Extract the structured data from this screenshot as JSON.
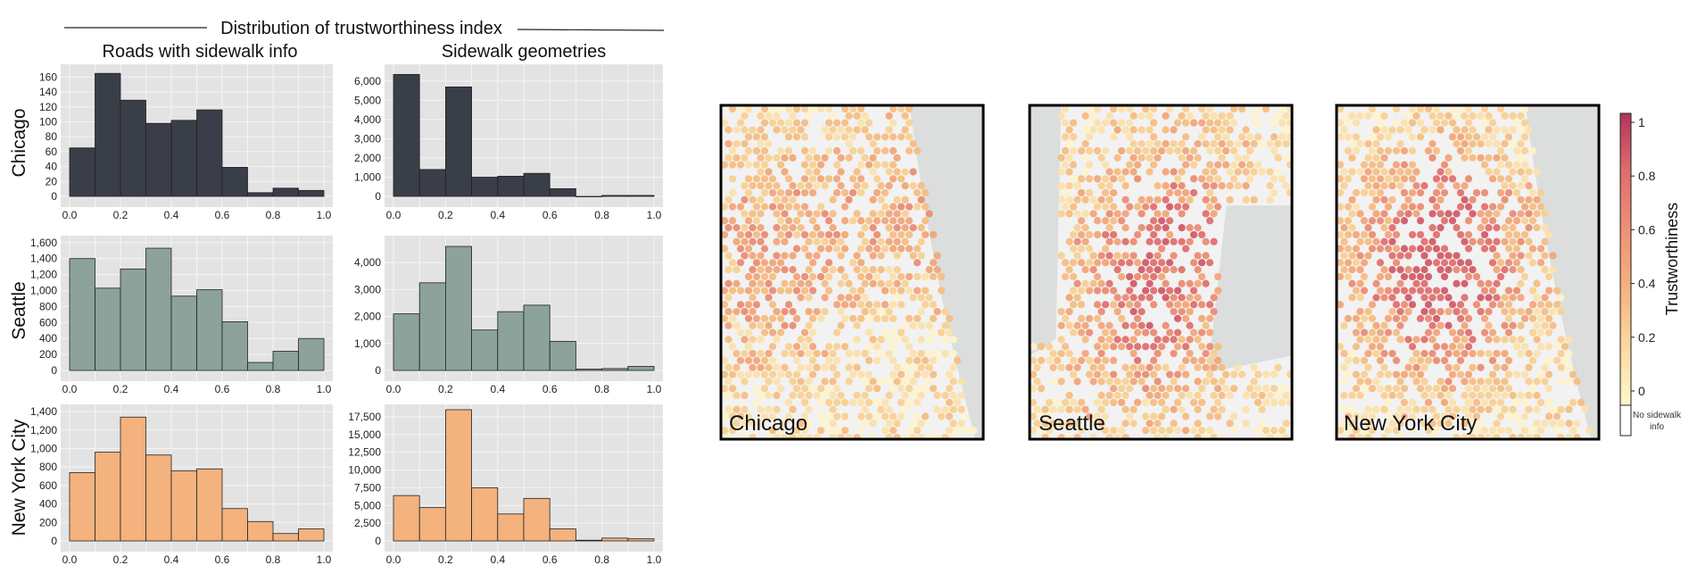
{
  "figure": {
    "title": "Distribution of trustworthiness index",
    "column_titles": [
      "Roads with sidewalk info",
      "Sidewalk geometries"
    ],
    "row_labels": [
      "Chicago",
      "Seattle",
      "New York City"
    ],
    "colors": {
      "Chicago": "#3a3e48",
      "Seattle": "#8ca29a",
      "New York City": "#f3b27e",
      "panel_bg": "#e3e3e3",
      "grid": "#f4f4f4"
    }
  },
  "chart_data": [
    {
      "type": "bar",
      "city": "Chicago",
      "column": "Roads with sidewalk info",
      "bin_edges": [
        0.0,
        0.1,
        0.2,
        0.3,
        0.4,
        0.5,
        0.6,
        0.7,
        0.8,
        0.9,
        1.0
      ],
      "values": [
        65,
        165,
        129,
        98,
        102,
        116,
        39,
        5,
        11,
        8
      ],
      "xticks": [
        "0.0",
        "0.2",
        "0.4",
        "0.6",
        "0.8",
        "1.0"
      ],
      "ylim": [
        0,
        170
      ],
      "yticks": [
        0,
        20,
        40,
        60,
        80,
        100,
        120,
        140,
        160
      ],
      "ytick_labels": [
        "0",
        "20",
        "40",
        "60",
        "80",
        "100",
        "120",
        "140",
        "160"
      ]
    },
    {
      "type": "bar",
      "city": "Chicago",
      "column": "Sidewalk geometries",
      "bin_edges": [
        0.0,
        0.1,
        0.2,
        0.3,
        0.4,
        0.5,
        0.6,
        0.7,
        0.8,
        0.9,
        1.0
      ],
      "values": [
        6350,
        1400,
        5700,
        1000,
        1050,
        1200,
        400,
        0,
        50,
        50
      ],
      "xticks": [
        "0.0",
        "0.2",
        "0.4",
        "0.6",
        "0.8",
        "1.0"
      ],
      "ylim": [
        0,
        6600
      ],
      "yticks": [
        0,
        1000,
        2000,
        3000,
        4000,
        5000,
        6000
      ],
      "ytick_labels": [
        "0",
        "1,000",
        "2,000",
        "3,000",
        "4,000",
        "5,000",
        "6,000"
      ]
    },
    {
      "type": "bar",
      "city": "Seattle",
      "column": "Roads with sidewalk info",
      "bin_edges": [
        0.0,
        0.1,
        0.2,
        0.3,
        0.4,
        0.5,
        0.6,
        0.7,
        0.8,
        0.9,
        1.0
      ],
      "values": [
        1400,
        1030,
        1270,
        1530,
        930,
        1010,
        610,
        100,
        240,
        400
      ],
      "xticks": [
        "0.0",
        "0.2",
        "0.4",
        "0.6",
        "0.8",
        "1.0"
      ],
      "ylim": [
        0,
        1620
      ],
      "yticks": [
        0,
        200,
        400,
        600,
        800,
        1000,
        1200,
        1400,
        1600
      ],
      "ytick_labels": [
        "0",
        "200",
        "400",
        "600",
        "800",
        "1,000",
        "1,200",
        "1,400",
        "1,600"
      ]
    },
    {
      "type": "bar",
      "city": "Seattle",
      "column": "Sidewalk geometries",
      "bin_edges": [
        0.0,
        0.1,
        0.2,
        0.3,
        0.4,
        0.5,
        0.6,
        0.7,
        0.8,
        0.9,
        1.0
      ],
      "values": [
        2100,
        3250,
        4600,
        1500,
        2180,
        2420,
        1080,
        50,
        70,
        150
      ],
      "xticks": [
        "0.0",
        "0.2",
        "0.4",
        "0.6",
        "0.8",
        "1.0"
      ],
      "ylim": [
        0,
        4800
      ],
      "yticks": [
        0,
        1000,
        2000,
        3000,
        4000
      ],
      "ytick_labels": [
        "0",
        "1,000",
        "2,000",
        "3,000",
        "4,000"
      ]
    },
    {
      "type": "bar",
      "city": "New York City",
      "column": "Roads with sidewalk info",
      "bin_edges": [
        0.0,
        0.1,
        0.2,
        0.3,
        0.4,
        0.5,
        0.6,
        0.7,
        0.8,
        0.9,
        1.0
      ],
      "values": [
        740,
        960,
        1340,
        930,
        760,
        780,
        350,
        210,
        80,
        130
      ],
      "xticks": [
        "0.0",
        "0.2",
        "0.4",
        "0.6",
        "0.8",
        "1.0"
      ],
      "ylim": [
        0,
        1420
      ],
      "yticks": [
        0,
        200,
        400,
        600,
        800,
        1000,
        1200,
        1400
      ],
      "ytick_labels": [
        "0",
        "200",
        "400",
        "600",
        "800",
        "1,000",
        "1,200",
        "1,400"
      ]
    },
    {
      "type": "bar",
      "city": "New York City",
      "column": "Sidewalk geometries",
      "bin_edges": [
        0.0,
        0.1,
        0.2,
        0.3,
        0.4,
        0.5,
        0.6,
        0.7,
        0.8,
        0.9,
        1.0
      ],
      "values": [
        6400,
        4700,
        18500,
        7500,
        3800,
        6000,
        1700,
        100,
        400,
        300
      ],
      "xticks": [
        "0.0",
        "0.2",
        "0.4",
        "0.6",
        "0.8",
        "1.0"
      ],
      "ylim": [
        0,
        18500
      ],
      "yticks": [
        0,
        2500,
        5000,
        7500,
        10000,
        12500,
        15000,
        17500
      ],
      "ytick_labels": [
        "0",
        "2,500",
        "5,000",
        "7,500",
        "10,000",
        "12,500",
        "15,000",
        "17,500"
      ]
    }
  ],
  "maps": {
    "labels": [
      "Chicago",
      "Seattle",
      "New York City"
    ]
  },
  "colorbar": {
    "label": "Trustworthiness",
    "ticks": [
      "0",
      "0.2",
      "0.4",
      "0.6",
      "0.8",
      "1"
    ],
    "no_data_label_lines": [
      "No sidewalk",
      "info"
    ],
    "colors": [
      "#fff6c6",
      "#fbd79a",
      "#f6b07d",
      "#ed8f72",
      "#de6c6c",
      "#b2385c"
    ]
  }
}
